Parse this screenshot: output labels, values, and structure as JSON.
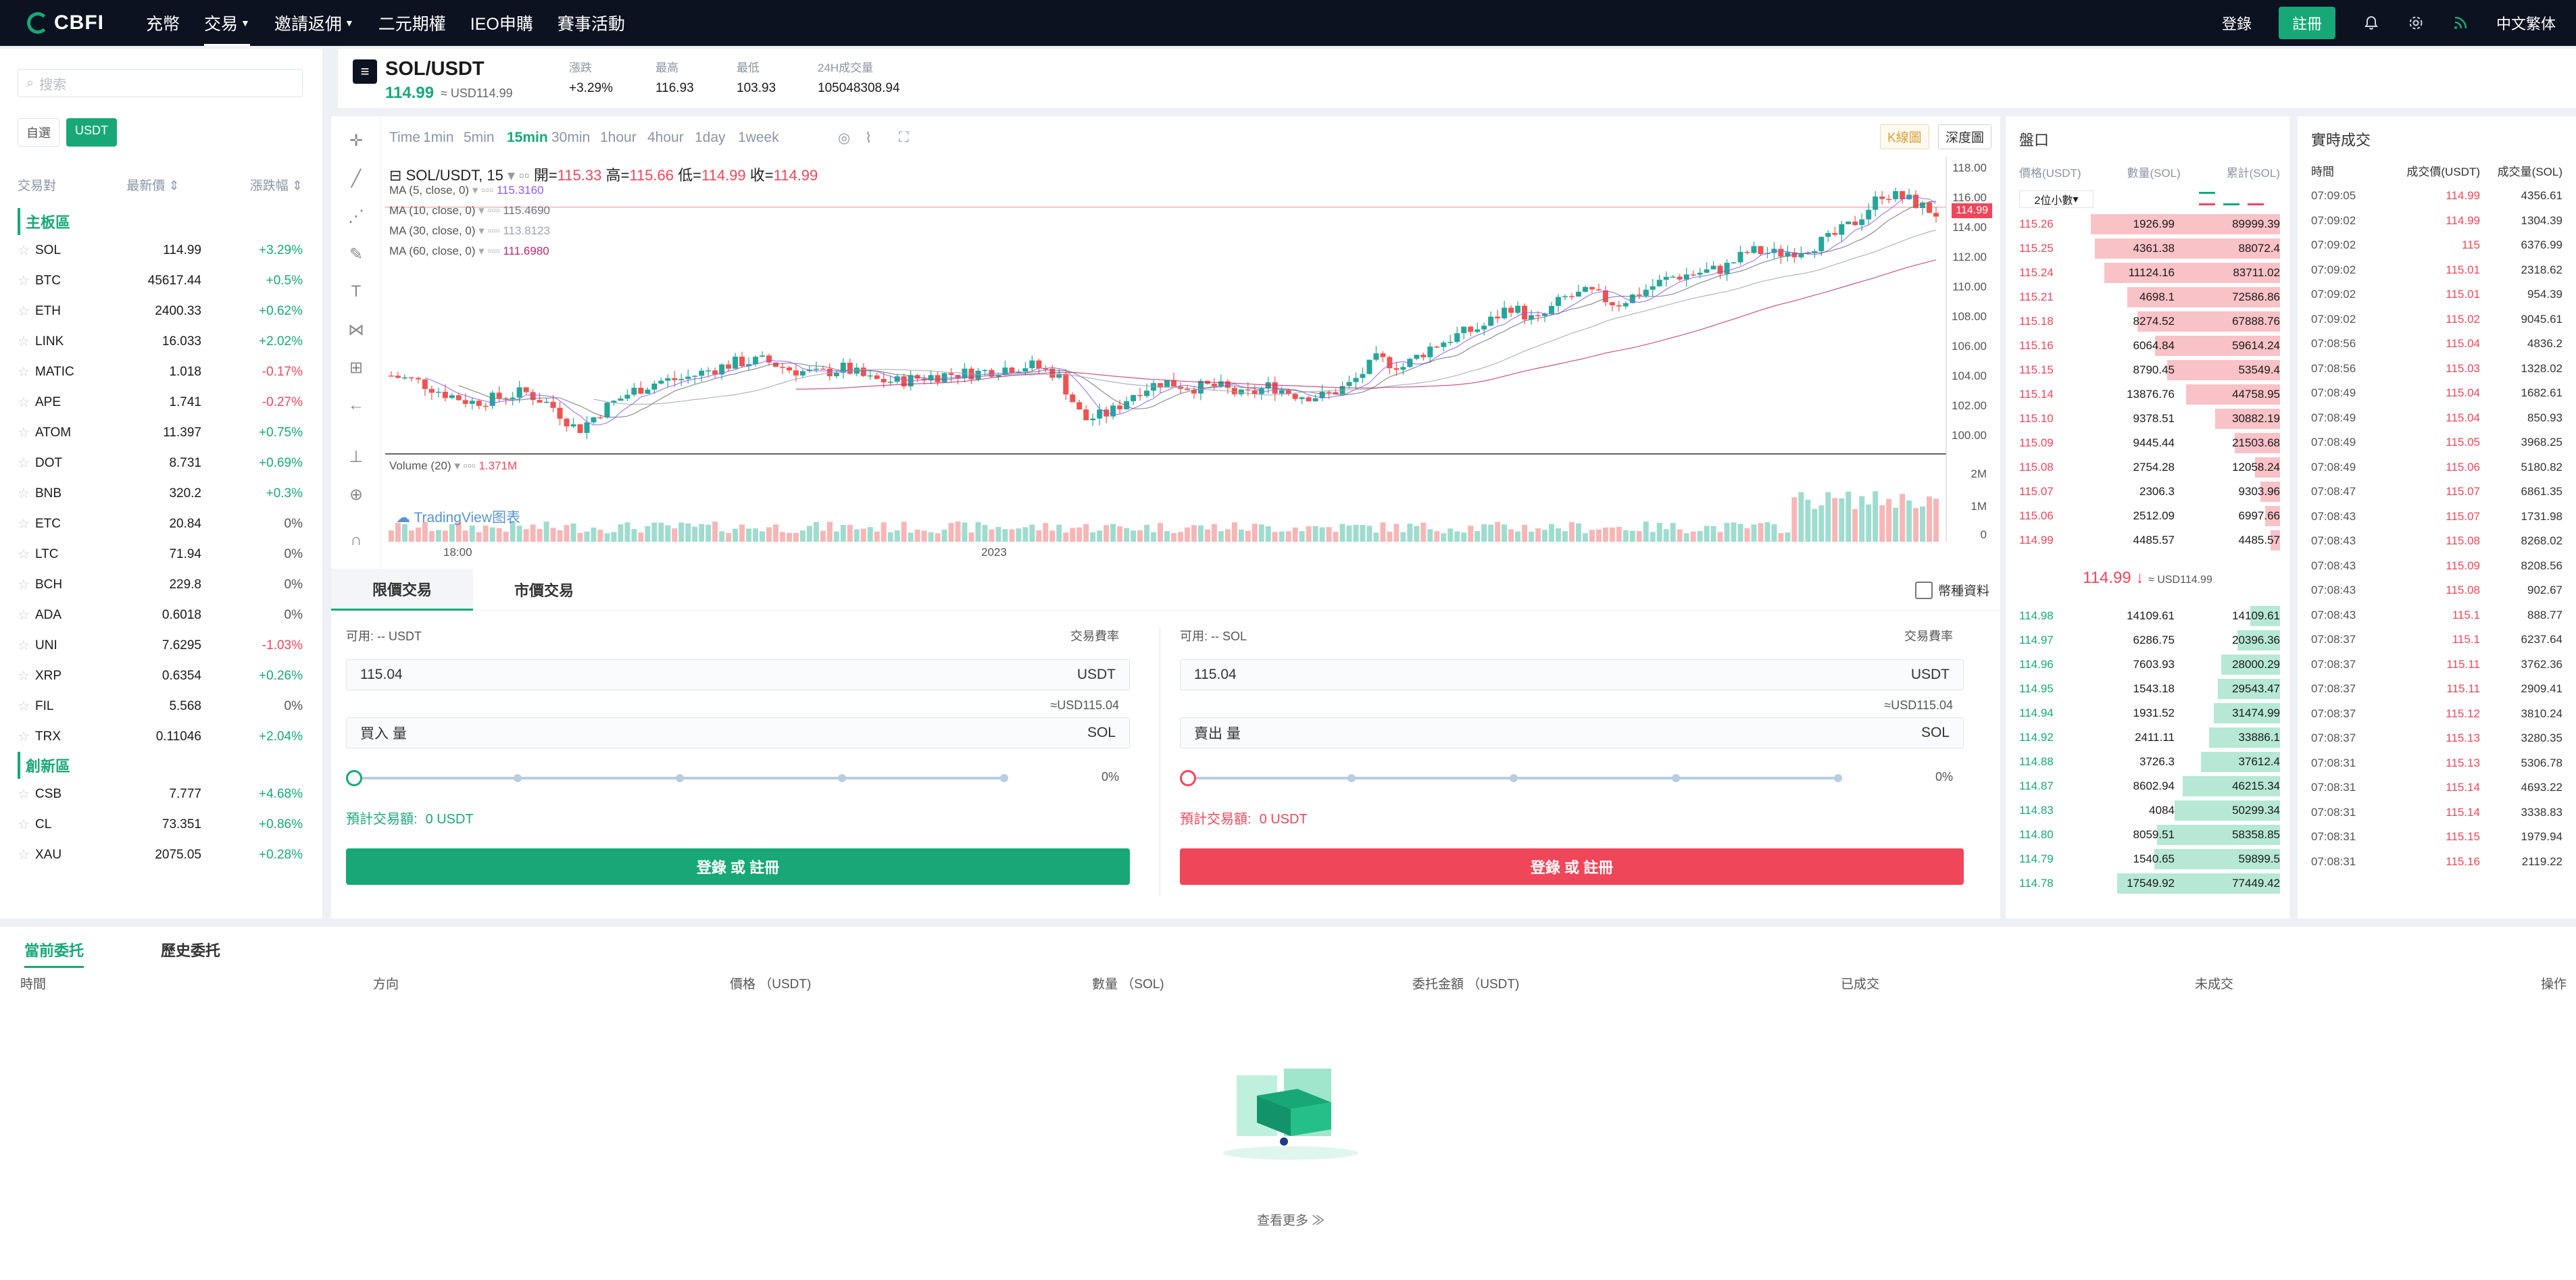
{
  "nav": {
    "logo": "CBFI",
    "items": [
      "充幣",
      "交易",
      "邀請返佣",
      "二元期權",
      "IEO申購",
      "賽事活動"
    ],
    "login": "登錄",
    "register": "註冊",
    "language": "中文繁体"
  },
  "market": {
    "search_placeholder": "搜索",
    "tabs": [
      "自選",
      "USDT"
    ],
    "header": {
      "pair": "交易對",
      "price": "最新價",
      "change": "漲跌幅"
    },
    "sections": [
      {
        "title": "主板區",
        "rows": [
          {
            "sym": "SOL",
            "price": "114.99",
            "chg": "+3.29%",
            "dir": "up"
          },
          {
            "sym": "BTC",
            "price": "45617.44",
            "chg": "+0.5%",
            "dir": "up"
          },
          {
            "sym": "ETH",
            "price": "2400.33",
            "chg": "+0.62%",
            "dir": "up"
          },
          {
            "sym": "LINK",
            "price": "16.033",
            "chg": "+2.02%",
            "dir": "up"
          },
          {
            "sym": "MATIC",
            "price": "1.018",
            "chg": "-0.17%",
            "dir": "down"
          },
          {
            "sym": "APE",
            "price": "1.741",
            "chg": "-0.27%",
            "dir": "down"
          },
          {
            "sym": "ATOM",
            "price": "11.397",
            "chg": "+0.75%",
            "dir": "up"
          },
          {
            "sym": "DOT",
            "price": "8.731",
            "chg": "+0.69%",
            "dir": "up"
          },
          {
            "sym": "BNB",
            "price": "320.2",
            "chg": "+0.3%",
            "dir": "up"
          },
          {
            "sym": "ETC",
            "price": "20.84",
            "chg": "0%",
            "dir": "flat"
          },
          {
            "sym": "LTC",
            "price": "71.94",
            "chg": "0%",
            "dir": "flat"
          },
          {
            "sym": "BCH",
            "price": "229.8",
            "chg": "0%",
            "dir": "flat"
          },
          {
            "sym": "ADA",
            "price": "0.6018",
            "chg": "0%",
            "dir": "flat"
          },
          {
            "sym": "UNI",
            "price": "7.6295",
            "chg": "-1.03%",
            "dir": "down"
          },
          {
            "sym": "XRP",
            "price": "0.6354",
            "chg": "+0.26%",
            "dir": "up"
          },
          {
            "sym": "FIL",
            "price": "5.568",
            "chg": "0%",
            "dir": "flat"
          },
          {
            "sym": "TRX",
            "price": "0.11046",
            "chg": "+2.04%",
            "dir": "up"
          }
        ]
      },
      {
        "title": "創新區",
        "rows": [
          {
            "sym": "CSB",
            "price": "7.777",
            "chg": "+4.68%",
            "dir": "up"
          },
          {
            "sym": "CL",
            "price": "73.351",
            "chg": "+0.86%",
            "dir": "up"
          },
          {
            "sym": "XAU",
            "price": "2075.05",
            "chg": "+0.28%",
            "dir": "up"
          }
        ]
      }
    ]
  },
  "ticker": {
    "pair": "SOL/USDT",
    "price": "114.99",
    "usd": "≈ USD114.99",
    "change_label": "漲跌",
    "change": "+3.29%",
    "high_label": "最高",
    "high": "116.93",
    "low_label": "最低",
    "low": "103.93",
    "vol_label": "24H成交量",
    "vol": "105048308.94"
  },
  "chart": {
    "intervals": [
      "Time",
      "1min",
      "5min",
      "15min",
      "30min",
      "1hour",
      "4hour",
      "1day",
      "1week"
    ],
    "active_interval": "15min",
    "kline_btn": "K線圖",
    "depth_btn": "深度圖",
    "title": "SOL/USDT, 15",
    "ohlc": {
      "open_label": "開=",
      "open": "115.33",
      "high_label": "高=",
      "high": "115.66",
      "low_label": "低=",
      "low": "114.99",
      "close_label": "收=",
      "close": "114.99"
    },
    "ma": [
      {
        "label": "MA (5, close, 0)",
        "value": "115.3160",
        "color": "#8b5cf6"
      },
      {
        "label": "MA (10, close, 0)",
        "value": "115.4690",
        "color": "#6b7280"
      },
      {
        "label": "MA (30, close, 0)",
        "value": "113.8123",
        "color": "#9ca3af"
      },
      {
        "label": "MA (60, close, 0)",
        "value": "111.6980",
        "color": "#c0266d"
      }
    ],
    "price_axis": [
      "118.00",
      "116.00",
      "114.00",
      "112.00",
      "110.00",
      "108.00",
      "106.00",
      "104.00",
      "102.00",
      "100.00"
    ],
    "last_price_tag": "114.99",
    "volume_label": "Volume (20)",
    "volume_value": "1.371M",
    "volume_axis": [
      "2M",
      "1M",
      "0"
    ],
    "time_axis": [
      "18:00",
      "2023"
    ],
    "watermark": "TradingView图表"
  },
  "chart_data": {
    "type": "candlestick",
    "y_range": [
      100,
      118
    ],
    "close_trend": [
      104.0,
      103.6,
      102.8,
      102.2,
      102.5,
      102.9,
      102.0,
      100.3,
      101.8,
      102.9,
      103.6,
      103.8,
      104.4,
      104.9,
      105.0,
      104.4,
      104.1,
      104.5,
      103.7,
      103.6,
      103.9,
      104.1,
      104.2,
      104.5,
      104.7,
      104.1,
      101.0,
      101.5,
      103.0,
      103.6,
      103.2,
      103.3,
      102.6,
      103.3,
      102.7,
      102.6,
      103.4,
      105.1,
      104.6,
      105.9,
      106.7,
      107.3,
      108.7,
      107.6,
      109.2,
      109.6,
      108.8,
      109.7,
      110.6,
      110.9,
      111.2,
      112.4,
      112.2,
      112.5,
      113.2,
      114.4,
      116.3,
      115.8,
      114.9
    ],
    "ma_series": [
      "MA 5",
      "MA 10",
      "MA 30",
      "MA 60"
    ],
    "volume_range_M": [
      0,
      2
    ]
  },
  "order_form": {
    "tabs": [
      "限價交易",
      "市價交易"
    ],
    "info": "幣種資料",
    "buy": {
      "avail": "可用: -- USDT",
      "fee": "交易費率",
      "price": "115.04",
      "price_unit": "USDT",
      "approx": "≈USD115.04",
      "amount_label": "買入 量",
      "amount_unit": "SOL",
      "pct": "0%",
      "est_label": "預計交易額:",
      "est": "0 USDT",
      "btn": "登錄 或 註冊"
    },
    "sell": {
      "avail": "可用: -- SOL",
      "fee": "交易費率",
      "price": "115.04",
      "price_unit": "USDT",
      "approx": "≈USD115.04",
      "amount_label": "賣出 量",
      "amount_unit": "SOL",
      "pct": "0%",
      "est_label": "預計交易額:",
      "est": "0 USDT",
      "btn": "登錄 或 註冊"
    }
  },
  "orderbook": {
    "title": "盤口",
    "cols": [
      "價格(USDT)",
      "數量(SOL)",
      "累計(SOL)"
    ],
    "precision": "2位小數",
    "asks": [
      [
        "115.26",
        "1926.99",
        "89999.39"
      ],
      [
        "115.25",
        "4361.38",
        "88072.4"
      ],
      [
        "115.24",
        "11124.16",
        "83711.02"
      ],
      [
        "115.21",
        "4698.1",
        "72586.86"
      ],
      [
        "115.18",
        "8274.52",
        "67888.76"
      ],
      [
        "115.16",
        "6064.84",
        "59614.24"
      ],
      [
        "115.15",
        "8790.45",
        "53549.4"
      ],
      [
        "115.14",
        "13876.76",
        "44758.95"
      ],
      [
        "115.10",
        "9378.51",
        "30882.19"
      ],
      [
        "115.09",
        "9445.44",
        "21503.68"
      ],
      [
        "115.08",
        "2754.28",
        "12058.24"
      ],
      [
        "115.07",
        "2306.3",
        "9303.96"
      ],
      [
        "115.06",
        "2512.09",
        "6997.66"
      ],
      [
        "114.99",
        "4485.57",
        "4485.57"
      ]
    ],
    "mid_price": "114.99",
    "mid_arrow": "↓",
    "mid_usd": "≈ USD114.99",
    "bids": [
      [
        "114.98",
        "14109.61",
        "14109.61"
      ],
      [
        "114.97",
        "6286.75",
        "20396.36"
      ],
      [
        "114.96",
        "7603.93",
        "28000.29"
      ],
      [
        "114.95",
        "1543.18",
        "29543.47"
      ],
      [
        "114.94",
        "1931.52",
        "31474.99"
      ],
      [
        "114.92",
        "2411.11",
        "33886.1"
      ],
      [
        "114.88",
        "3726.3",
        "37612.4"
      ],
      [
        "114.87",
        "8602.94",
        "46215.34"
      ],
      [
        "114.83",
        "4084",
        "50299.34"
      ],
      [
        "114.80",
        "8059.51",
        "58358.85"
      ],
      [
        "114.79",
        "1540.65",
        "59899.5"
      ],
      [
        "114.78",
        "17549.92",
        "77449.42"
      ]
    ]
  },
  "trades": {
    "title": "實時成交",
    "cols": [
      "時間",
      "成交價(USDT)",
      "成交量(SOL)"
    ],
    "rows": [
      [
        "07:09:05",
        "114.99",
        "4356.61"
      ],
      [
        "07:09:02",
        "114.99",
        "1304.39"
      ],
      [
        "07:09:02",
        "115",
        "6376.99"
      ],
      [
        "07:09:02",
        "115.01",
        "2318.62"
      ],
      [
        "07:09:02",
        "115.01",
        "954.39"
      ],
      [
        "07:09:02",
        "115.02",
        "9045.61"
      ],
      [
        "07:08:56",
        "115.04",
        "4836.2"
      ],
      [
        "07:08:56",
        "115.03",
        "1328.02"
      ],
      [
        "07:08:49",
        "115.04",
        "1682.61"
      ],
      [
        "07:08:49",
        "115.04",
        "850.93"
      ],
      [
        "07:08:49",
        "115.05",
        "3968.25"
      ],
      [
        "07:08:49",
        "115.06",
        "5180.82"
      ],
      [
        "07:08:47",
        "115.07",
        "6861.35"
      ],
      [
        "07:08:43",
        "115.07",
        "1731.98"
      ],
      [
        "07:08:43",
        "115.08",
        "8268.02"
      ],
      [
        "07:08:43",
        "115.09",
        "8208.56"
      ],
      [
        "07:08:43",
        "115.08",
        "902.67"
      ],
      [
        "07:08:43",
        "115.1",
        "888.77"
      ],
      [
        "07:08:37",
        "115.1",
        "6237.64"
      ],
      [
        "07:08:37",
        "115.11",
        "3762.36"
      ],
      [
        "07:08:37",
        "115.11",
        "2909.41"
      ],
      [
        "07:08:37",
        "115.12",
        "3810.24"
      ],
      [
        "07:08:37",
        "115.13",
        "3280.35"
      ],
      [
        "07:08:31",
        "115.13",
        "5306.78"
      ],
      [
        "07:08:31",
        "115.14",
        "4693.22"
      ],
      [
        "07:08:31",
        "115.14",
        "3338.83"
      ],
      [
        "07:08:31",
        "115.15",
        "1979.94"
      ],
      [
        "07:08:31",
        "115.16",
        "2119.22"
      ]
    ]
  },
  "orders": {
    "tabs": [
      "當前委托",
      "歷史委托"
    ],
    "cols": [
      "時間",
      "方向",
      "價格 （USDT)",
      "數量 （SOL)",
      "委托金額 （USDT)",
      "已成交",
      "未成交",
      "操作"
    ],
    "more": "查看更多 ≫"
  },
  "colors": {
    "green": "#18a877",
    "red": "#f0465a",
    "nav": "#0c1220"
  }
}
